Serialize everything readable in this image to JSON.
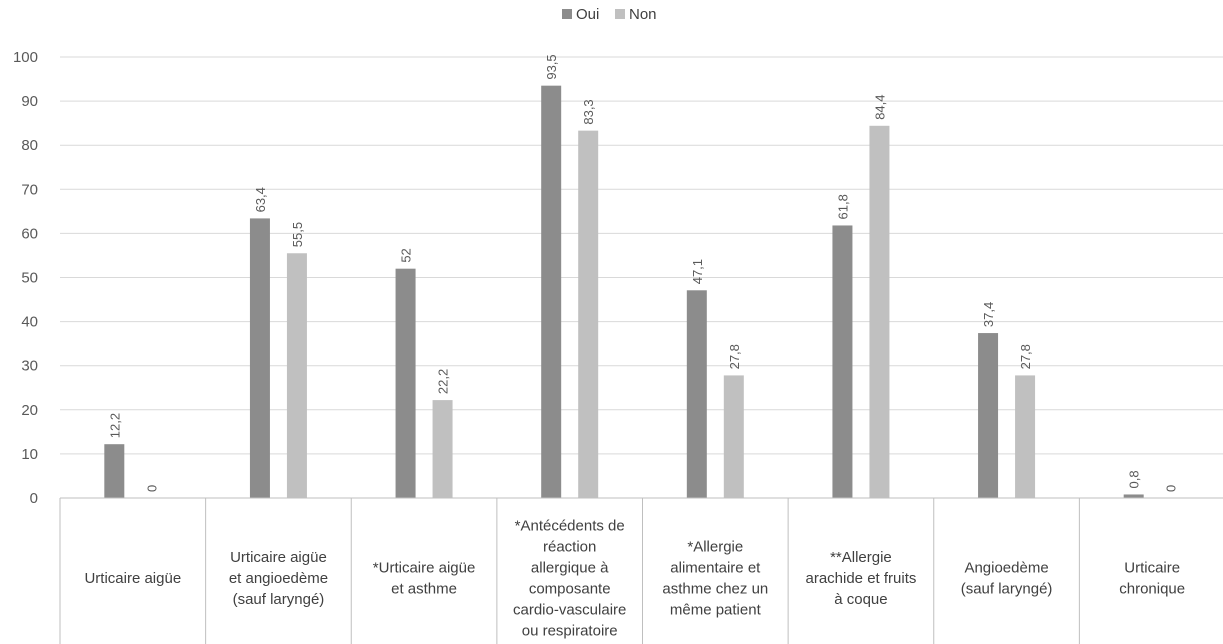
{
  "chart_data": {
    "type": "bar",
    "legend_position": "top",
    "grid": true,
    "ylim": [
      0,
      100
    ],
    "y_ticks": [
      0,
      10,
      20,
      30,
      40,
      50,
      60,
      70,
      80,
      90,
      100
    ],
    "categories": [
      [
        "Urticaire aigüe"
      ],
      [
        "Urticaire aigüe",
        "et angioedème",
        "(sauf laryngé)"
      ],
      [
        "*Urticaire aigüe",
        "et asthme"
      ],
      [
        "*Antécédents de",
        "réaction",
        "allergique à",
        "composante",
        "cardio-vasculaire",
        "ou respiratoire"
      ],
      [
        "*Allergie",
        "alimentaire et",
        "asthme chez un",
        "même patient"
      ],
      [
        "**Allergie",
        "arachide et fruits",
        "à coque"
      ],
      [
        "Angioedème",
        "(sauf laryngé)"
      ],
      [
        "Urticaire",
        "chronique"
      ]
    ],
    "series": [
      {
        "name": "Oui",
        "color": "#8c8c8c",
        "values": [
          12.2,
          63.4,
          52,
          93.5,
          47.1,
          61.8,
          37.4,
          0.8
        ],
        "labels": [
          "12,2",
          "63,4",
          "52",
          "93,5",
          "47,1",
          "61,8",
          "37,4",
          "0,8"
        ]
      },
      {
        "name": "Non",
        "color": "#c0c0c0",
        "values": [
          0,
          55.5,
          22.2,
          83.3,
          27.8,
          84.4,
          27.8,
          0
        ],
        "labels": [
          "0",
          "55,5",
          "22,2",
          "83,3",
          "27,8",
          "84,4",
          "27,8",
          "0"
        ]
      }
    ]
  }
}
